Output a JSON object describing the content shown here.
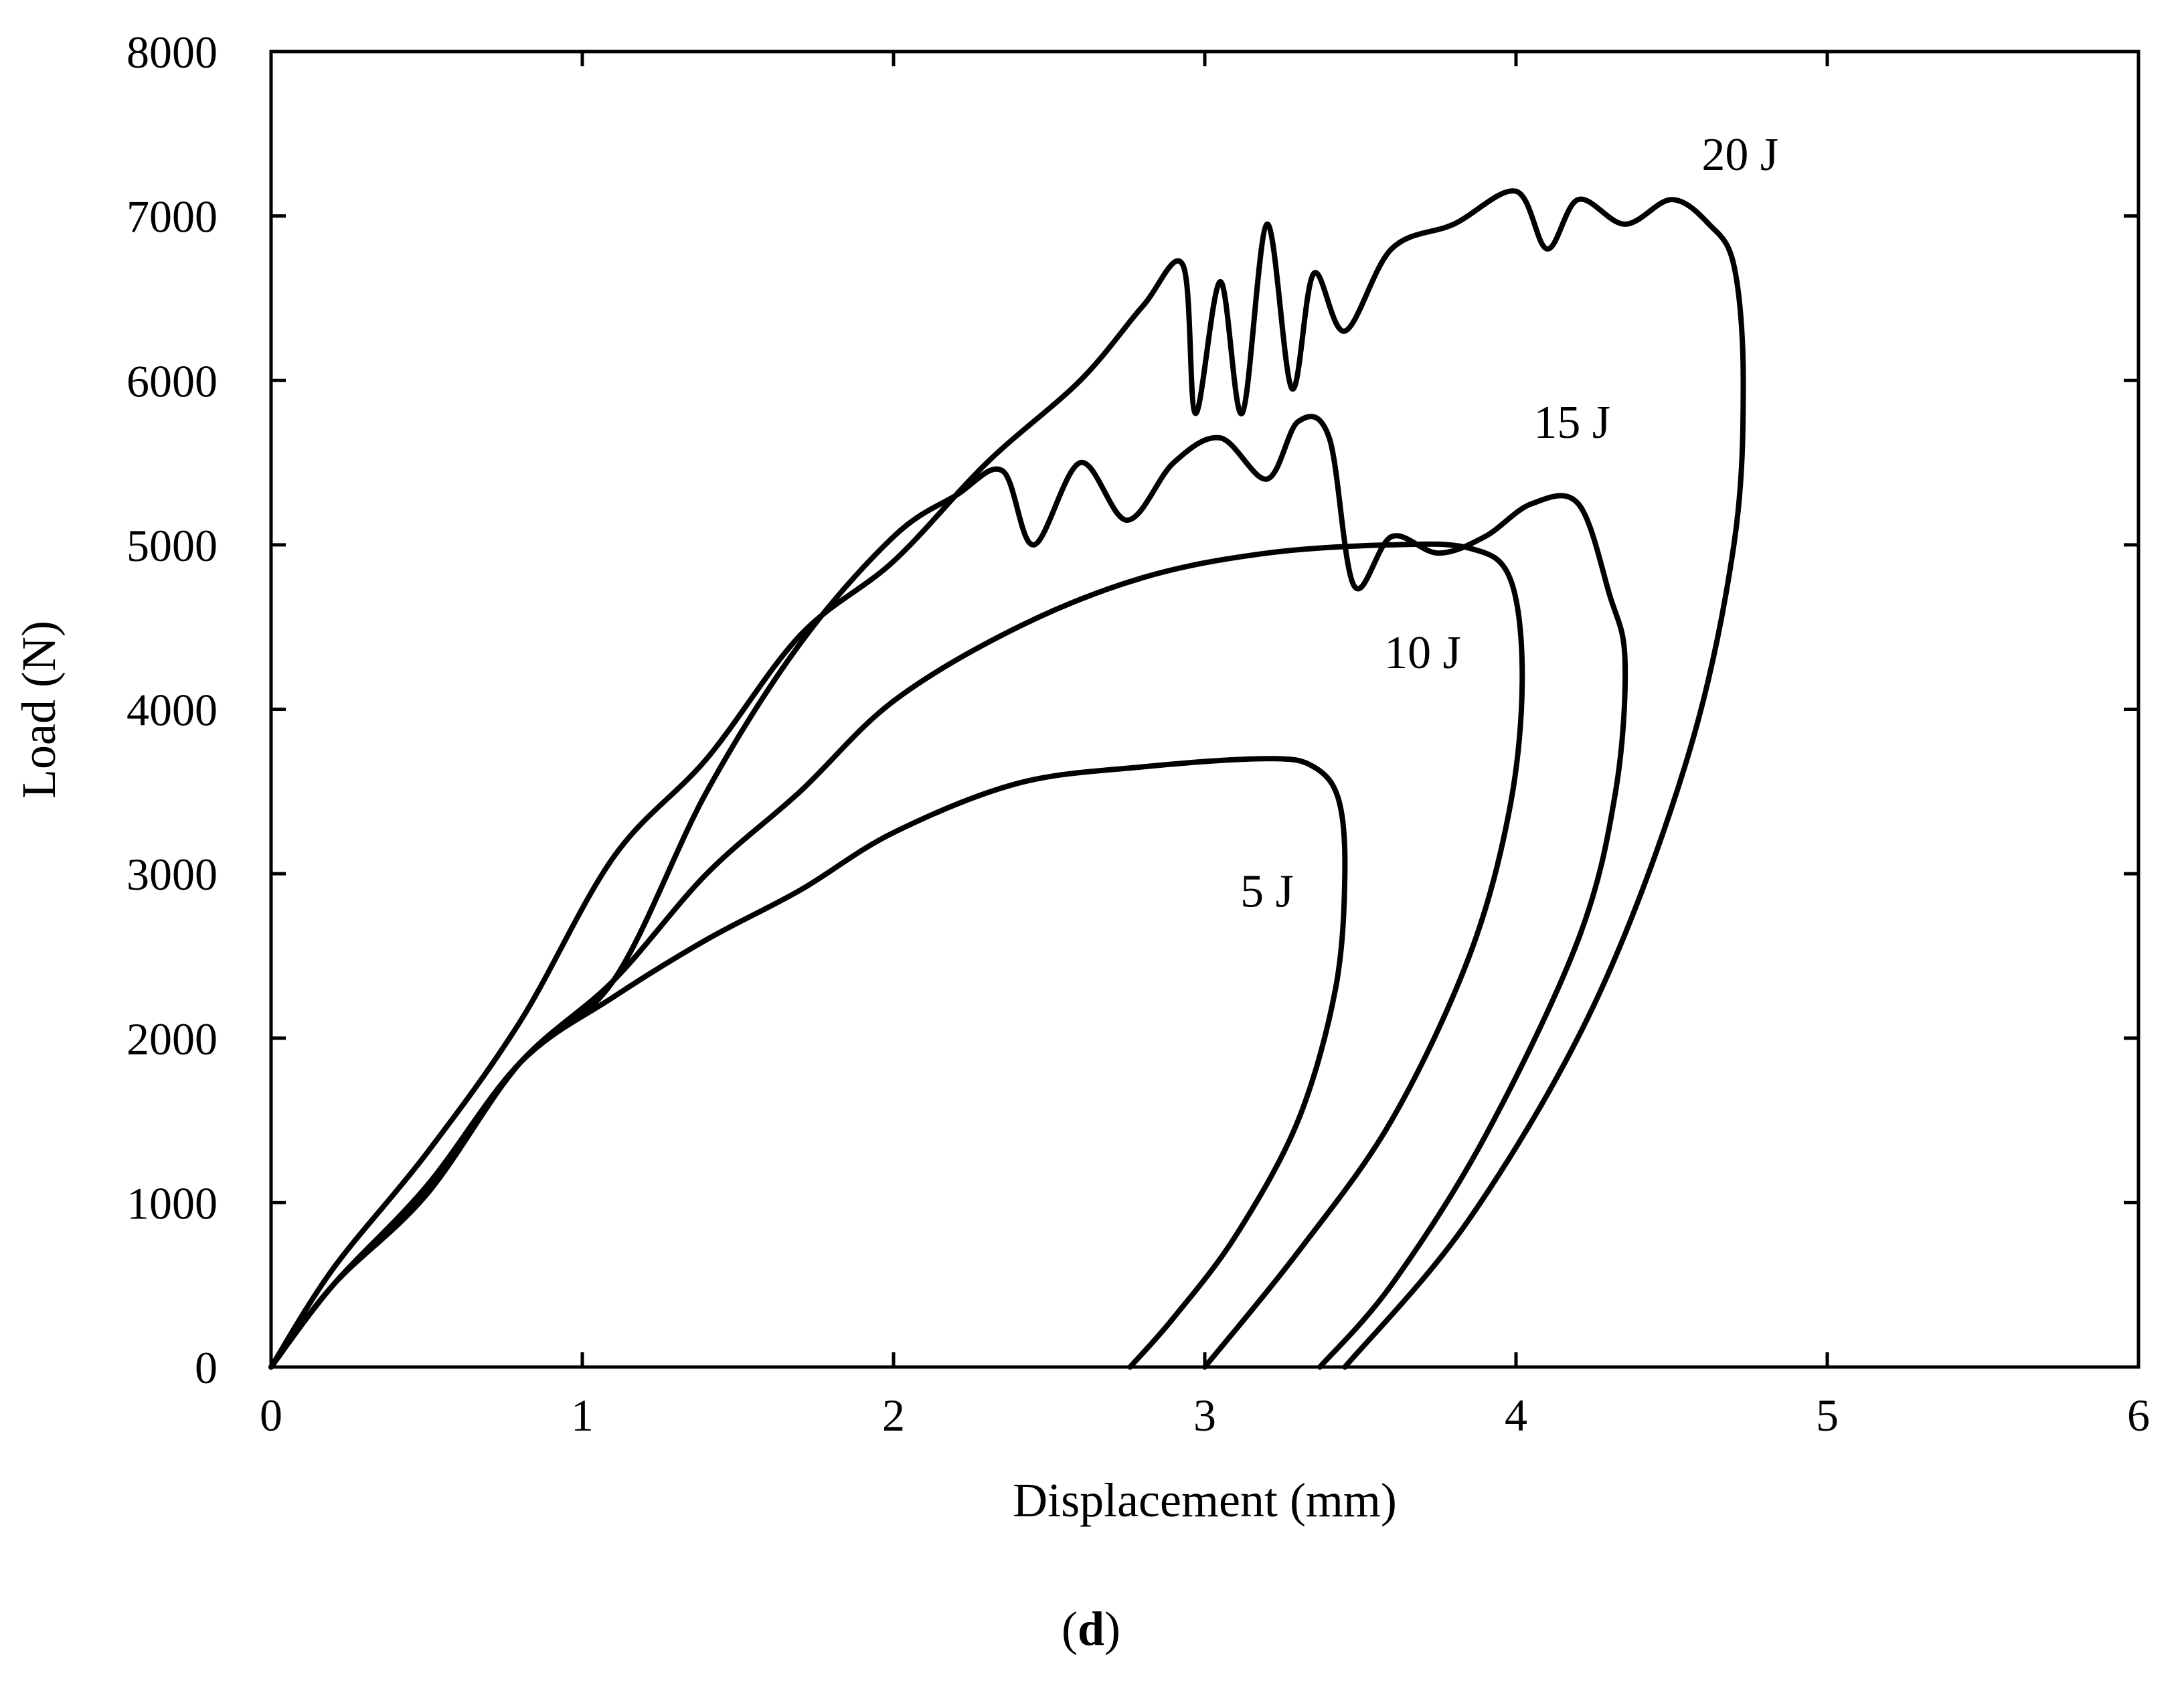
{
  "chart_data": {
    "type": "line",
    "title": "",
    "xlabel": "Displacement (mm)",
    "ylabel": "Load (N)",
    "xlim": [
      0,
      6
    ],
    "ylim": [
      0,
      8000
    ],
    "xticks": [
      0,
      1,
      2,
      3,
      4,
      5,
      6
    ],
    "yticks": [
      0,
      1000,
      2000,
      3000,
      4000,
      5000,
      6000,
      7000,
      8000
    ],
    "grid": false,
    "caption": {
      "open": "(",
      "letter": "d",
      "close": ")"
    },
    "series": [
      {
        "name": "5 J",
        "label_at": [
          3.2,
          2800
        ],
        "x": [
          0,
          0.2,
          0.5,
          0.8,
          1.1,
          1.4,
          1.7,
          2.0,
          2.4,
          2.8,
          3.2,
          3.35,
          3.43,
          3.45,
          3.42,
          3.3,
          3.1,
          2.9,
          2.76
        ],
        "y": [
          0,
          500,
          1100,
          1850,
          2250,
          2600,
          2900,
          3250,
          3550,
          3650,
          3700,
          3650,
          3450,
          3000,
          2300,
          1500,
          800,
          300,
          0
        ]
      },
      {
        "name": "10 J",
        "label_at": [
          3.7,
          4250
        ],
        "x": [
          0,
          0.2,
          0.5,
          0.8,
          1.1,
          1.4,
          1.7,
          2.0,
          2.4,
          2.8,
          3.2,
          3.6,
          3.85,
          3.98,
          4.02,
          3.98,
          3.85,
          3.6,
          3.3,
          3.0
        ],
        "y": [
          0,
          500,
          1100,
          1850,
          2350,
          3000,
          3500,
          4050,
          4500,
          4800,
          4950,
          5000,
          4980,
          4800,
          4200,
          3400,
          2500,
          1500,
          700,
          0
        ]
      },
      {
        "name": "15 J",
        "label_at": [
          4.18,
          5650
        ],
        "x": [
          0,
          0.2,
          0.5,
          0.8,
          1.1,
          1.4,
          1.7,
          2.0,
          2.2,
          2.35,
          2.45,
          2.6,
          2.75,
          2.9,
          3.05,
          3.2,
          3.3,
          3.4,
          3.48,
          3.6,
          3.75,
          3.9,
          4.05,
          4.2,
          4.3,
          4.35,
          4.32,
          4.2,
          3.9,
          3.6,
          3.37
        ],
        "y": [
          0,
          500,
          1050,
          1850,
          2350,
          3500,
          4400,
          5050,
          5300,
          5450,
          5000,
          5500,
          5150,
          5500,
          5650,
          5400,
          5750,
          5650,
          4750,
          5050,
          4950,
          5050,
          5250,
          5250,
          4700,
          4300,
          3500,
          2600,
          1400,
          500,
          0
        ]
      },
      {
        "name": "20 J",
        "label_at": [
          4.72,
          7280
        ],
        "x": [
          0,
          0.2,
          0.5,
          0.8,
          1.1,
          1.4,
          1.7,
          2.0,
          2.3,
          2.6,
          2.8,
          2.93,
          2.97,
          3.05,
          3.12,
          3.2,
          3.28,
          3.35,
          3.45,
          3.6,
          3.8,
          4.0,
          4.1,
          4.2,
          4.35,
          4.5,
          4.62,
          4.7,
          4.73,
          4.7,
          4.55,
          4.25,
          3.85,
          3.45
        ],
        "y": [
          0,
          600,
          1300,
          2100,
          3100,
          3700,
          4450,
          4900,
          5500,
          6000,
          6450,
          6700,
          5800,
          6600,
          5800,
          6950,
          5950,
          6650,
          6300,
          6800,
          6950,
          7150,
          6800,
          7100,
          6950,
          7100,
          6950,
          6700,
          6000,
          5000,
          3700,
          2200,
          900,
          0
        ]
      }
    ]
  }
}
